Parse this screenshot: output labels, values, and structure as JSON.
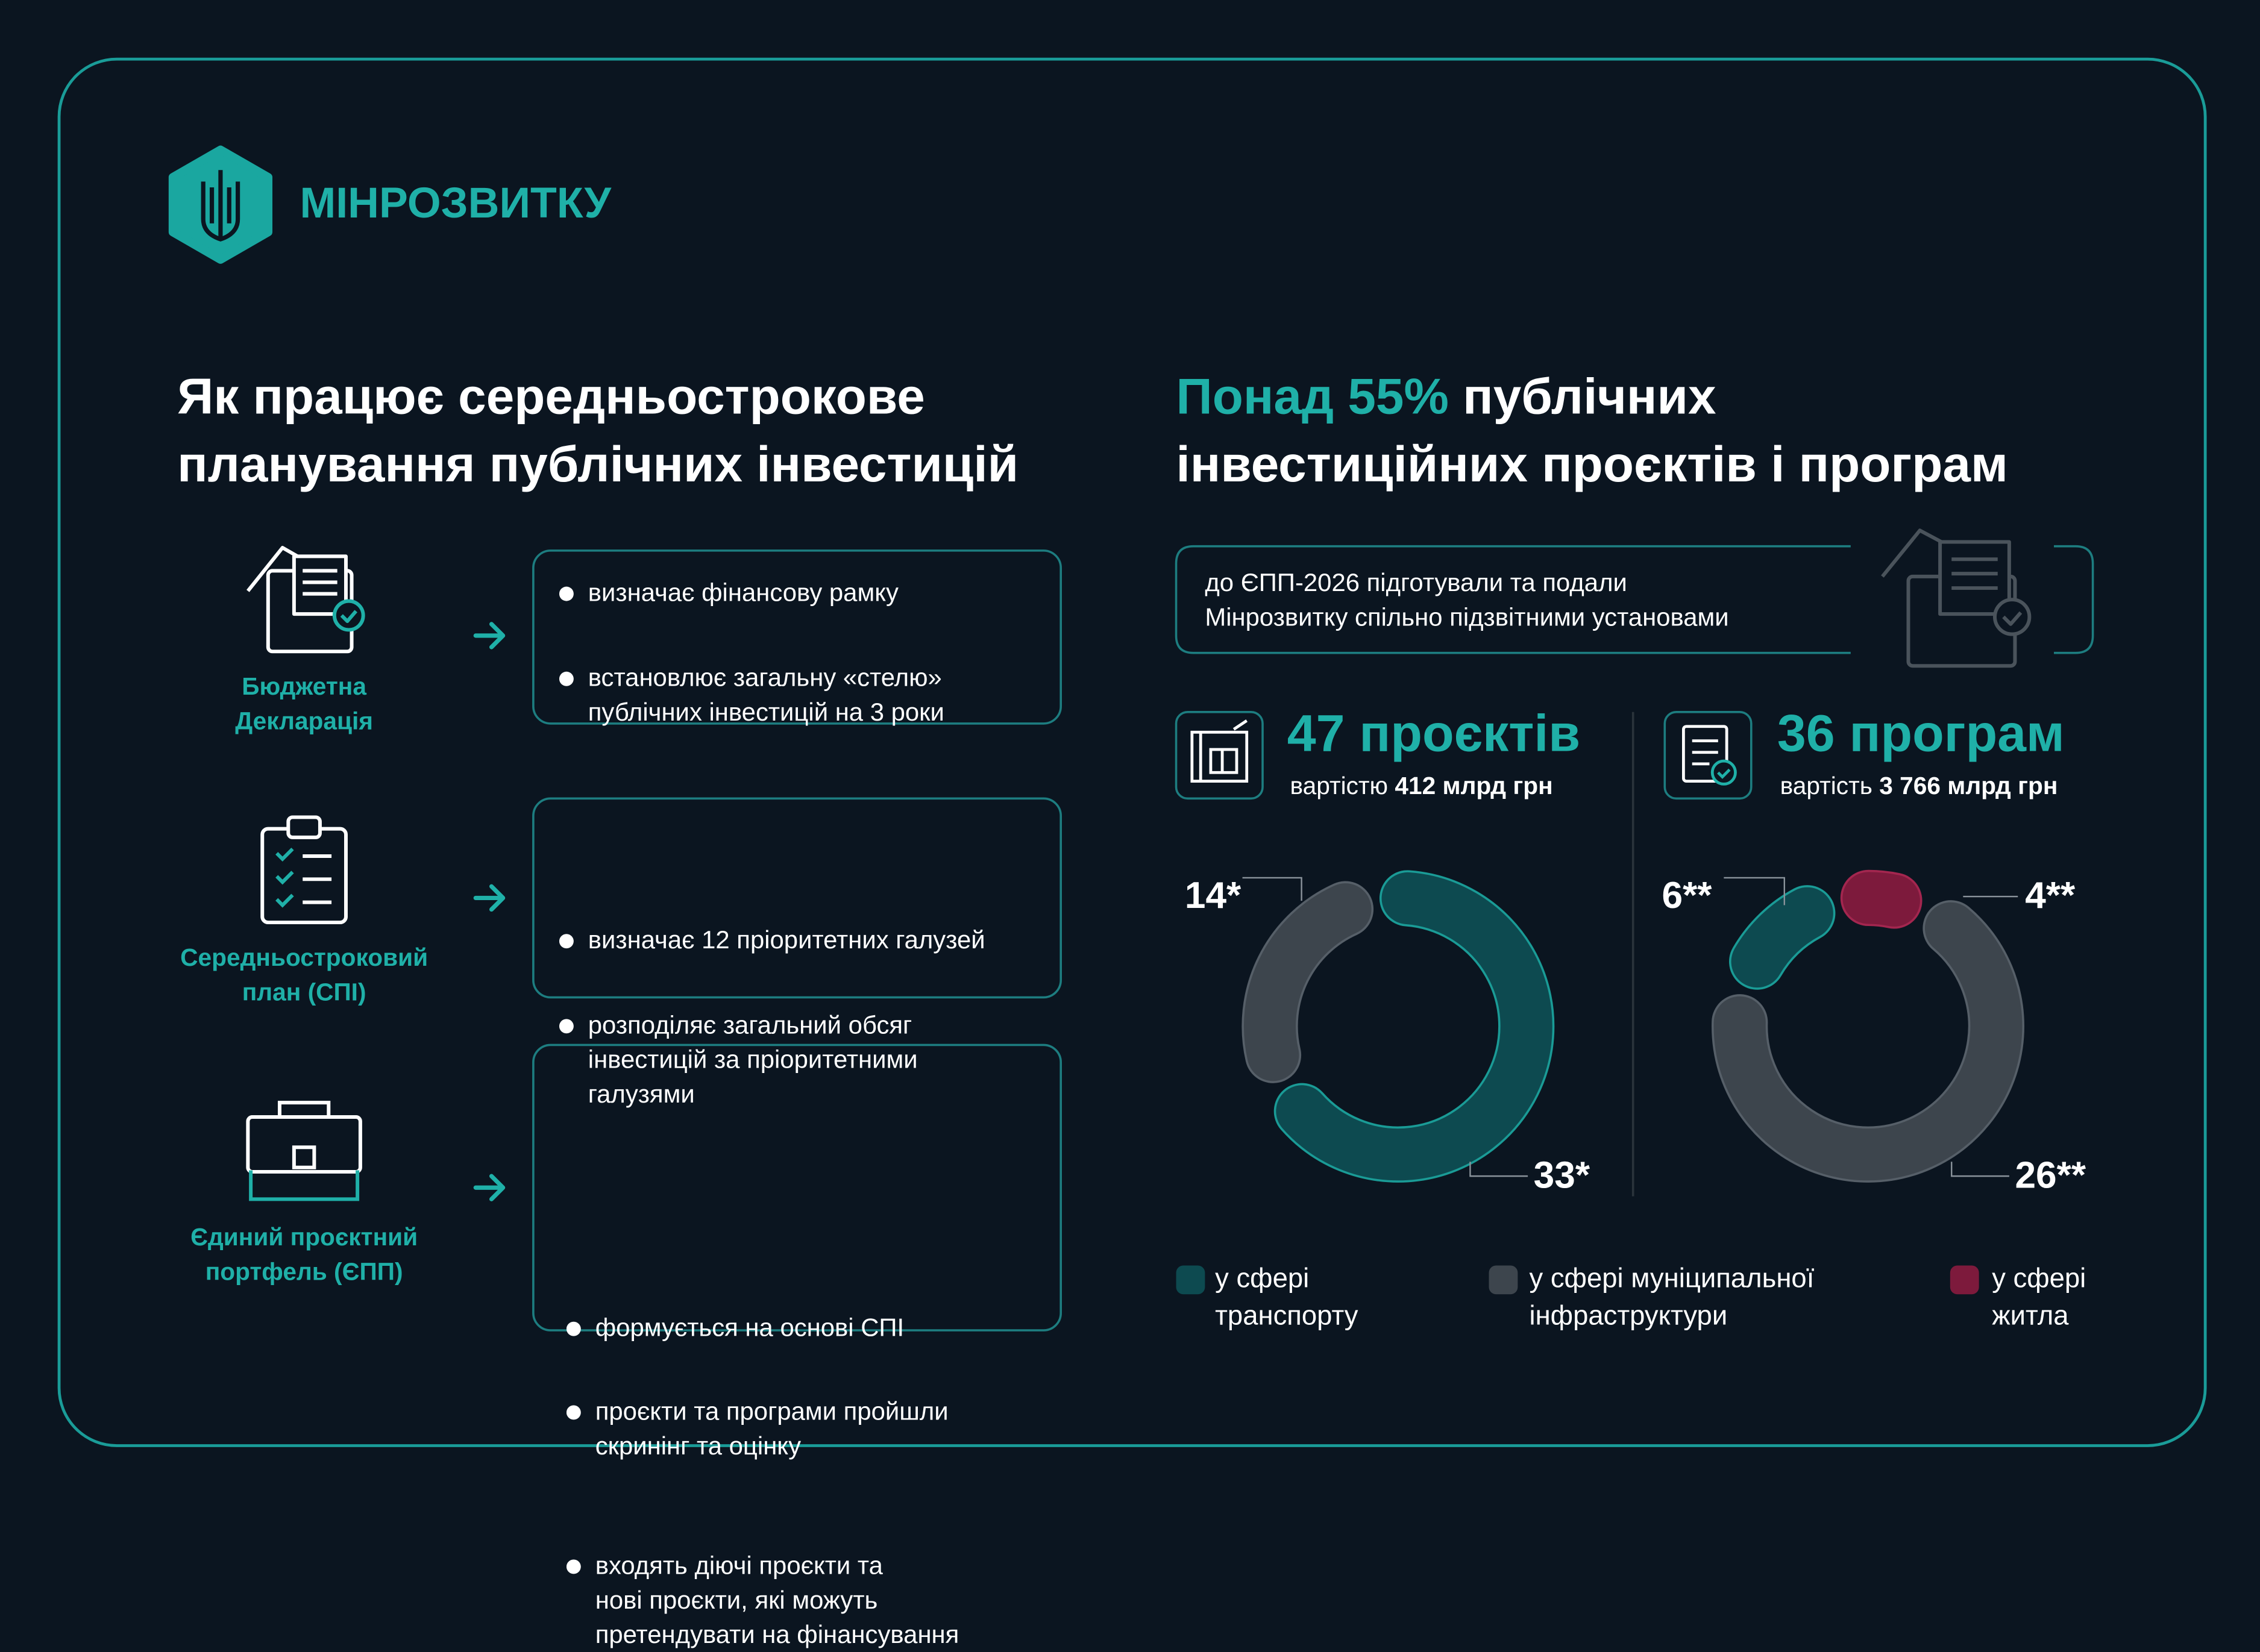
{
  "header": {
    "logo_text": "МІНРОЗВИТКУ"
  },
  "left": {
    "title_lines": [
      "Як працює середньострокове",
      "планування публічних інвестицій"
    ],
    "steps": [
      {
        "label_lines": [
          "Бюджетна",
          "Декларація"
        ],
        "bullets": [
          [
            "визначає фінансову рамку"
          ],
          [
            "встановлює загальну «стелю»",
            "публічних інвестицій на 3 роки"
          ]
        ]
      },
      {
        "label_lines": [
          "Середньостроковий",
          "план (СПІ)"
        ],
        "bullets": [
          [
            "визначає 12 пріоритетних галузей"
          ],
          [
            "розподіляє загальний обсяг",
            "інвестицій за пріоритетними",
            "галузями"
          ]
        ]
      },
      {
        "label_lines": [
          "Єдиний проєктний",
          "портфель (ЄПП)"
        ],
        "bullets": [
          [
            "формується на основі СПІ"
          ],
          [
            "проєкти та програми пройшли",
            "скринінг та оцінку"
          ],
          [
            "входять діючі проєкти та",
            "нові проєкти, які можуть",
            "претендувати на фінансування"
          ]
        ]
      }
    ]
  },
  "right": {
    "title_highlight": "Понад 55%",
    "title_line1_rest": "публічних",
    "title_line2": "інвестиційних проєктів і програм",
    "note_lines": [
      "до ЄПП-2026 підготували та подали",
      "Мінрозвитку спільно підзвітними установами"
    ],
    "stats": [
      {
        "headline": "47 проєктів",
        "cost_prefix": "вартістю",
        "cost_value": "412 млрд грн"
      },
      {
        "headline": "36 програм",
        "cost_prefix": "вартість",
        "cost_value": "3 766 млрд грн"
      }
    ]
  },
  "legend": {
    "items": [
      {
        "label": "у сфері транспорту",
        "color": "#0d4a50"
      },
      {
        "label": "у сфері муніципальної інфраструктури",
        "color": "#3d454d"
      },
      {
        "label": "у сфері житла",
        "color": "#7d1a3c"
      }
    ]
  },
  "chart_data": [
    {
      "type": "donut",
      "values": [
        33,
        14
      ],
      "value_labels": [
        "33*",
        "14*"
      ],
      "colors": [
        "#0d4a50",
        "#3d454d"
      ]
    },
    {
      "type": "donut",
      "values": [
        4,
        26,
        6
      ],
      "value_labels": [
        "4**",
        "26**",
        "6**"
      ],
      "colors": [
        "#7d1a3c",
        "#3d454d",
        "#0d4a50"
      ]
    }
  ]
}
